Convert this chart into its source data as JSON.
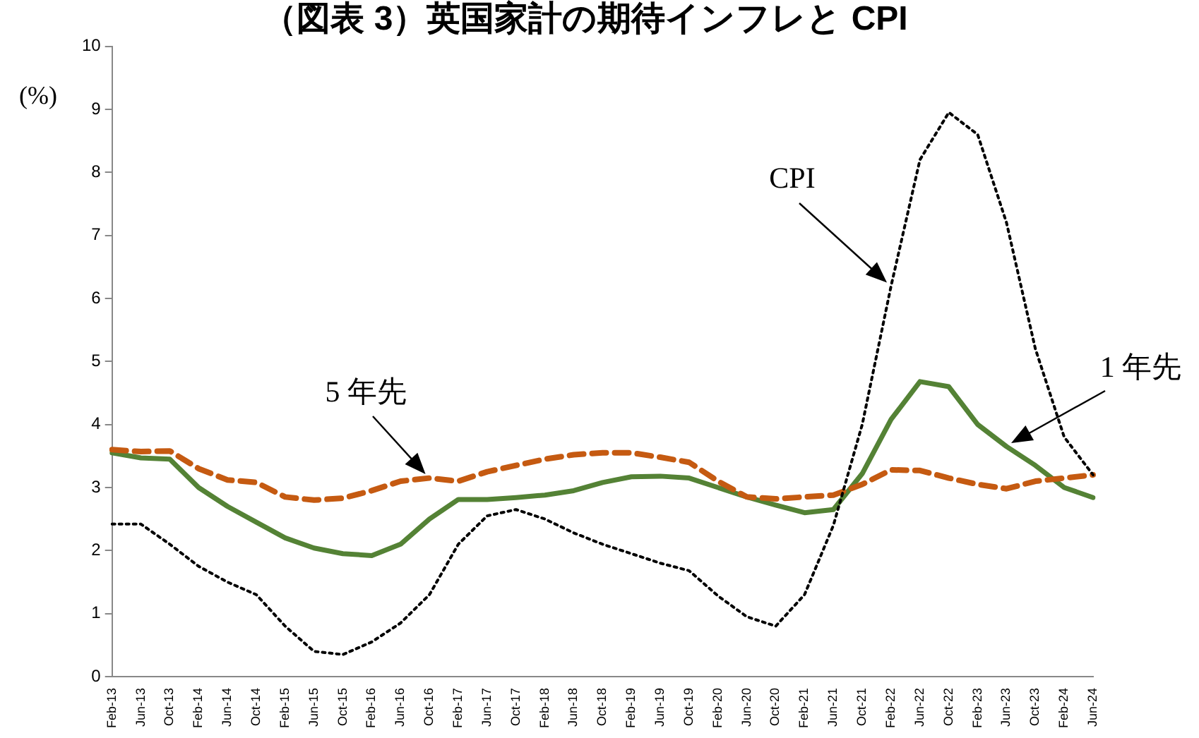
{
  "chart_data": {
    "type": "line",
    "title": "（図表 3）英国家計の期待インフレと CPI",
    "ylabel": "(%)",
    "categories": [
      "Feb-13",
      "Jun-13",
      "Oct-13",
      "Feb-14",
      "Jun-14",
      "Oct-14",
      "Feb-15",
      "Jun-15",
      "Oct-15",
      "Feb-16",
      "Jun-16",
      "Oct-16",
      "Feb-17",
      "Jun-17",
      "Oct-17",
      "Feb-18",
      "Jun-18",
      "Oct-18",
      "Feb-19",
      "Jun-19",
      "Oct-19",
      "Feb-20",
      "Jun-20",
      "Oct-20",
      "Feb-21",
      "Jun-21",
      "Oct-21",
      "Feb-22",
      "Jun-22",
      "Oct-22",
      "Feb-23",
      "Jun-23",
      "Oct-23",
      "Feb-24",
      "Jun-24"
    ],
    "series": [
      {
        "color": "#000000",
        "line_style": "dotted",
        "values": [
          2.42,
          2.42,
          2.1,
          1.75,
          1.5,
          1.3,
          0.8,
          0.4,
          0.35,
          0.55,
          0.85,
          1.3,
          2.1,
          2.55,
          2.65,
          2.5,
          2.28,
          2.1,
          1.95,
          1.8,
          1.68,
          1.28,
          0.95,
          0.8,
          1.3,
          2.4,
          4.0,
          6.2,
          8.2,
          8.95,
          8.6,
          7.2,
          5.2,
          3.8,
          3.2
        ]
      },
      {
        "color": "#c55a11",
        "line_style": "dashed",
        "values": [
          3.6,
          3.57,
          3.58,
          3.3,
          3.12,
          3.08,
          2.85,
          2.8,
          2.83,
          2.95,
          3.1,
          3.15,
          3.1,
          3.25,
          3.35,
          3.45,
          3.52,
          3.55,
          3.55,
          3.48,
          3.4,
          3.1,
          2.85,
          2.82,
          2.85,
          2.88,
          3.05,
          3.28,
          3.27,
          3.15,
          3.05,
          2.98,
          3.1,
          3.15,
          3.2
        ]
      },
      {
        "color": "#548235",
        "line_style": "solid",
        "values": [
          3.55,
          3.47,
          3.45,
          3.0,
          2.7,
          2.45,
          2.2,
          2.04,
          1.95,
          1.92,
          2.1,
          2.5,
          2.81,
          2.81,
          2.84,
          2.88,
          2.95,
          3.08,
          3.17,
          3.18,
          3.15,
          3.0,
          2.85,
          2.72,
          2.6,
          2.65,
          3.22,
          4.08,
          4.68,
          4.6,
          4.0,
          3.65,
          3.35,
          3.0,
          2.84
        ]
      }
    ],
    "annotations": [
      "CPI",
      "5 年先",
      "1 年先"
    ],
    "ylim": [
      0,
      10
    ],
    "yticks": [
      0,
      1,
      2,
      3,
      4,
      5,
      6,
      7,
      8,
      9,
      10
    ],
    "grid": false,
    "legend": false,
    "marker": "none"
  }
}
